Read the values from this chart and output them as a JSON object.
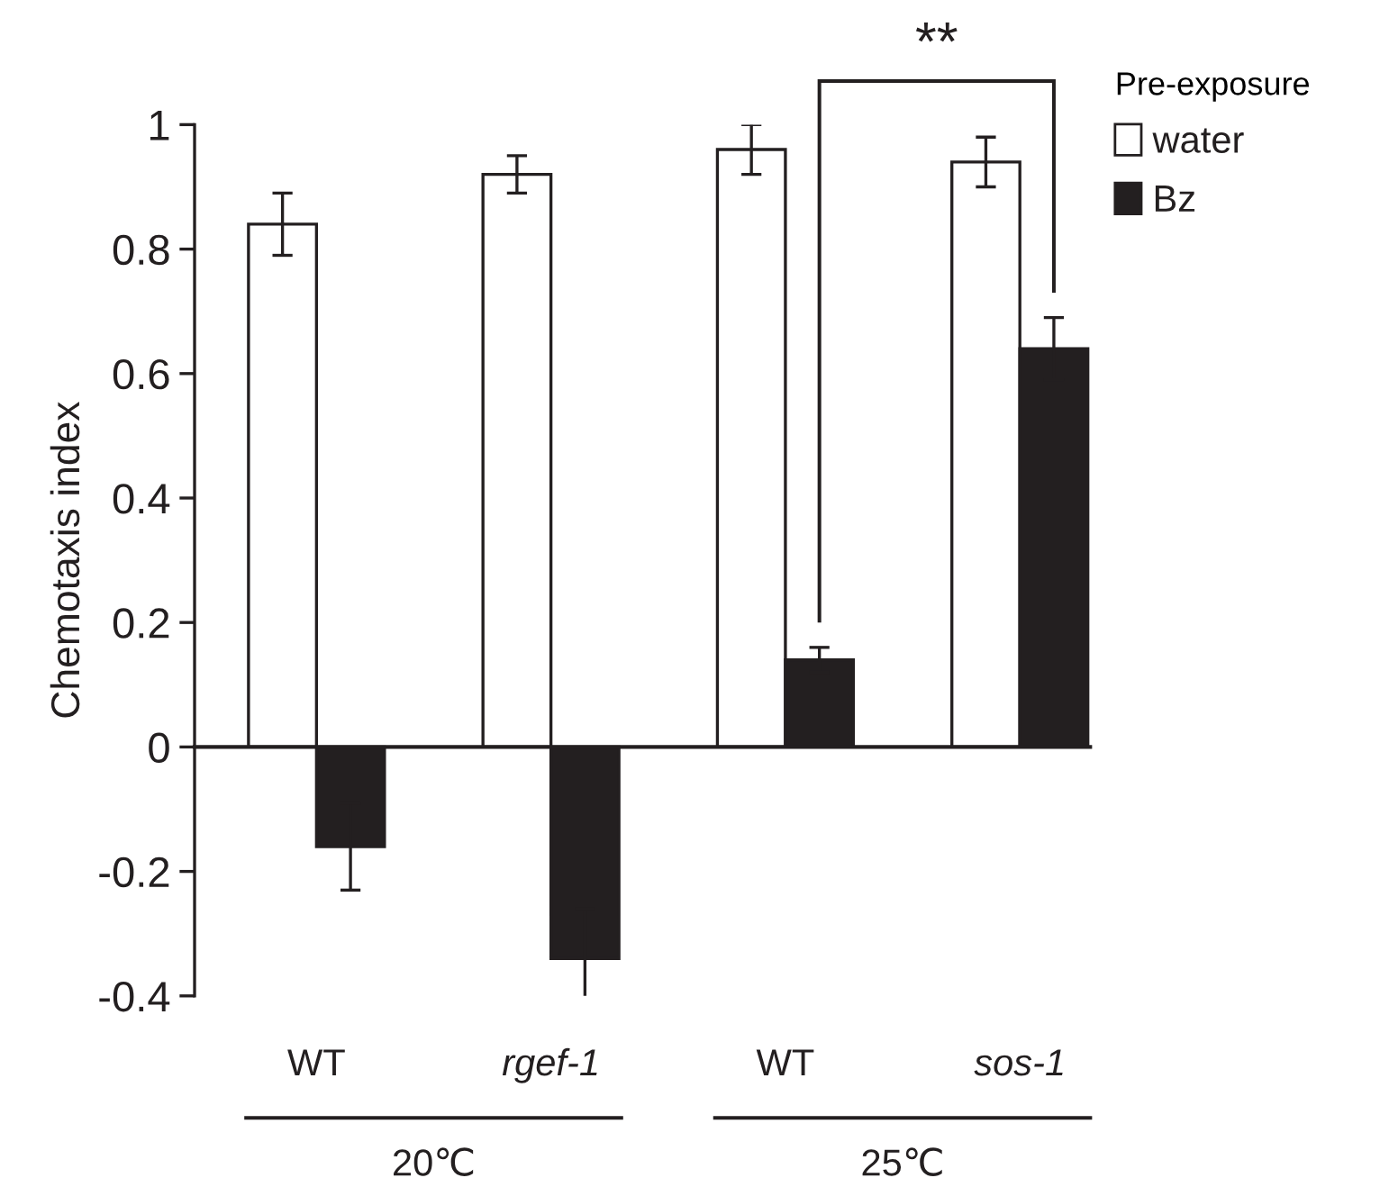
{
  "chart_data": {
    "type": "bar",
    "ylabel": "Chemotaxis index",
    "legend_title": "Pre-exposure",
    "categories": [
      "WT",
      "rgef-1",
      "WT",
      "sos-1"
    ],
    "series": [
      {
        "name": "water",
        "color": "#ffffff",
        "values": [
          0.84,
          0.92,
          0.96,
          0.94
        ],
        "errors": [
          0.05,
          0.03,
          0.04,
          0.04
        ]
      },
      {
        "name": "Bz",
        "color": "#231f20",
        "values": [
          -0.16,
          -0.34,
          0.14,
          0.64
        ],
        "errors": [
          0.07,
          0.08,
          0.02,
          0.05
        ]
      }
    ],
    "ylim": [
      -0.4,
      1
    ],
    "yticks": [
      -0.4,
      -0.2,
      0,
      0.2,
      0.4,
      0.6,
      0.8,
      1
    ],
    "annotations": [
      "**",
      "20℃",
      "25℃"
    ],
    "legend": "top right"
  }
}
